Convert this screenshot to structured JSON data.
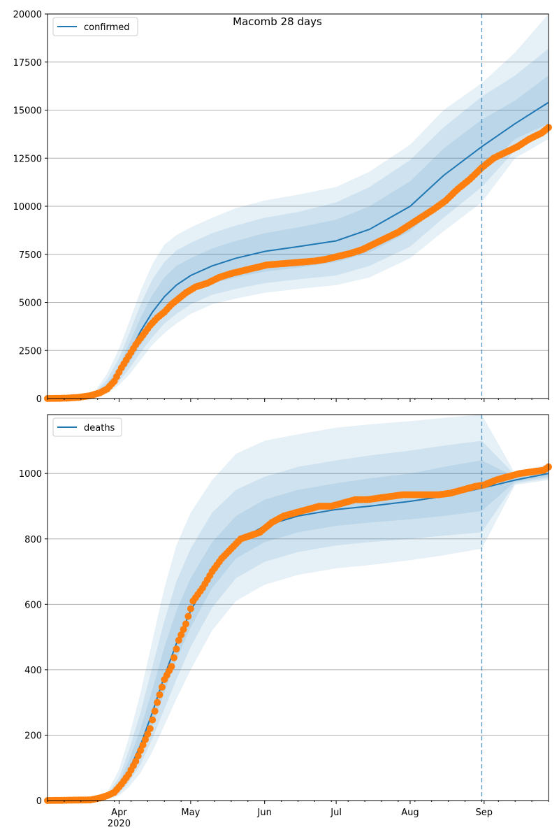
{
  "figure_title": "Macomb 28 days",
  "colors": {
    "model": "#1f77b4",
    "observed": "#ff7f0e",
    "band": "#1f77b4",
    "grid": "#b0b0b0"
  },
  "x_axis": {
    "type": "date",
    "range": [
      "2020-03-02",
      "2020-09-28"
    ],
    "ticks": [
      {
        "date": "2020-04-01",
        "label": "Apr",
        "year": "2020"
      },
      {
        "date": "2020-05-01",
        "label": "May"
      },
      {
        "date": "2020-06-01",
        "label": "Jun"
      },
      {
        "date": "2020-07-01",
        "label": "Jul"
      },
      {
        "date": "2020-08-01",
        "label": "Aug"
      },
      {
        "date": "2020-09-01",
        "label": "Sep"
      }
    ],
    "forecast_start": "2020-08-31"
  },
  "chart_data": [
    {
      "type": "line",
      "legend": "confirmed",
      "legend_position": "upper left",
      "grid": "horizontal",
      "ylim": [
        0,
        20000
      ],
      "yticks": [
        "0",
        "2500",
        "5000",
        "7500",
        "10000",
        "12500",
        "15000",
        "17500",
        "20000"
      ],
      "model": {
        "x": [
          "2020-03-02",
          "2020-03-15",
          "2020-03-22",
          "2020-03-27",
          "2020-04-01",
          "2020-04-05",
          "2020-04-10",
          "2020-04-15",
          "2020-04-20",
          "2020-04-25",
          "2020-05-01",
          "2020-05-10",
          "2020-05-20",
          "2020-06-01",
          "2020-06-15",
          "2020-07-01",
          "2020-07-15",
          "2020-08-01",
          "2020-08-15",
          "2020-08-31",
          "2020-09-14",
          "2020-09-28"
        ],
        "y": [
          0,
          50,
          200,
          600,
          1400,
          2300,
          3500,
          4500,
          5300,
          5900,
          6400,
          6900,
          7300,
          7650,
          7900,
          8200,
          8800,
          10000,
          11600,
          13100,
          14300,
          15400
        ],
        "band1_low": [
          0,
          40,
          150,
          450,
          1100,
          1800,
          2800,
          3700,
          4400,
          5000,
          5500,
          6000,
          6300,
          6600,
          6800,
          7100,
          7600,
          8700,
          10200,
          11800,
          13500,
          14300
        ],
        "band1_high": [
          0,
          60,
          250,
          800,
          1700,
          2800,
          4200,
          5400,
          6300,
          6900,
          7300,
          7800,
          8200,
          8600,
          8900,
          9300,
          10000,
          11300,
          13000,
          14500,
          15500,
          16800
        ],
        "band2_low": [
          0,
          30,
          100,
          350,
          900,
          1500,
          2400,
          3200,
          3900,
          4400,
          4900,
          5400,
          5700,
          6000,
          6200,
          6400,
          6900,
          7900,
          9400,
          11000,
          12900,
          13800
        ],
        "band2_high": [
          0,
          70,
          320,
          1000,
          2100,
          3300,
          4900,
          6200,
          7100,
          7700,
          8100,
          8600,
          9000,
          9400,
          9700,
          10200,
          11000,
          12400,
          14100,
          15700,
          16800,
          18200
        ],
        "band3_low": [
          0,
          20,
          80,
          250,
          700,
          1200,
          2000,
          2800,
          3400,
          3900,
          4400,
          4900,
          5200,
          5500,
          5700,
          5900,
          6300,
          7300,
          8700,
          10200,
          12500,
          13500
        ],
        "band3_high": [
          0,
          90,
          400,
          1300,
          2600,
          3900,
          5600,
          7000,
          8000,
          8500,
          8900,
          9400,
          9900,
          10300,
          10600,
          11000,
          11800,
          13200,
          15000,
          16400,
          18000,
          20000
        ]
      },
      "observed": {
        "x": [
          "2020-03-02",
          "2020-03-10",
          "2020-03-15",
          "2020-03-20",
          "2020-03-24",
          "2020-03-27",
          "2020-03-30",
          "2020-04-02",
          "2020-04-05",
          "2020-04-08",
          "2020-04-11",
          "2020-04-14",
          "2020-04-17",
          "2020-04-20",
          "2020-04-23",
          "2020-04-26",
          "2020-04-29",
          "2020-05-03",
          "2020-05-08",
          "2020-05-13",
          "2020-05-18",
          "2020-05-23",
          "2020-05-28",
          "2020-06-02",
          "2020-06-07",
          "2020-06-12",
          "2020-06-17",
          "2020-06-22",
          "2020-06-27",
          "2020-07-02",
          "2020-07-07",
          "2020-07-12",
          "2020-07-17",
          "2020-07-22",
          "2020-07-27",
          "2020-08-01",
          "2020-08-06",
          "2020-08-11",
          "2020-08-16",
          "2020-08-21",
          "2020-08-26",
          "2020-08-31",
          "2020-09-05",
          "2020-09-10",
          "2020-09-15",
          "2020-09-20",
          "2020-09-25",
          "2020-09-28"
        ],
        "y": [
          0,
          20,
          60,
          150,
          300,
          500,
          900,
          1600,
          2200,
          2800,
          3300,
          3800,
          4200,
          4500,
          4900,
          5200,
          5500,
          5800,
          6000,
          6300,
          6500,
          6650,
          6800,
          6950,
          7000,
          7050,
          7100,
          7150,
          7250,
          7400,
          7550,
          7750,
          8050,
          8350,
          8650,
          9050,
          9450,
          9850,
          10300,
          10900,
          11400,
          12000,
          12500,
          12800,
          13100,
          13500,
          13800,
          14100
        ]
      }
    },
    {
      "type": "line",
      "legend": "deaths",
      "legend_position": "upper left",
      "grid": "horizontal",
      "ylim": [
        0,
        1180
      ],
      "yticks": [
        "0",
        "200",
        "400",
        "600",
        "800",
        "1000"
      ],
      "model": {
        "x": [
          "2020-03-02",
          "2020-03-20",
          "2020-03-27",
          "2020-04-01",
          "2020-04-05",
          "2020-04-10",
          "2020-04-15",
          "2020-04-20",
          "2020-04-25",
          "2020-05-01",
          "2020-05-10",
          "2020-05-20",
          "2020-06-01",
          "2020-06-15",
          "2020-07-01",
          "2020-07-15",
          "2020-08-01",
          "2020-08-15",
          "2020-08-31",
          "2020-09-14",
          "2020-09-28"
        ],
        "y": [
          0,
          2,
          10,
          40,
          90,
          170,
          270,
          380,
          480,
          580,
          700,
          790,
          840,
          870,
          890,
          900,
          915,
          930,
          955,
          980,
          1000
        ],
        "band1_low": [
          0,
          1,
          7,
          30,
          70,
          140,
          230,
          330,
          430,
          530,
          650,
          740,
          790,
          820,
          840,
          850,
          860,
          870,
          885,
          975,
          990
        ],
        "band1_high": [
          0,
          3,
          14,
          55,
          120,
          220,
          340,
          470,
          580,
          680,
          790,
          870,
          920,
          950,
          970,
          985,
          1000,
          1020,
          1040,
          990,
          1010
        ],
        "band2_low": [
          0,
          1,
          5,
          22,
          55,
          110,
          190,
          280,
          370,
          470,
          590,
          680,
          730,
          760,
          780,
          790,
          800,
          810,
          820,
          970,
          985
        ],
        "band2_high": [
          0,
          4,
          18,
          70,
          150,
          270,
          410,
          550,
          670,
          770,
          880,
          950,
          990,
          1020,
          1040,
          1055,
          1070,
          1085,
          1100,
          995,
          1015
        ],
        "band3_low": [
          0,
          0,
          3,
          15,
          40,
          85,
          150,
          230,
          310,
          400,
          520,
          610,
          660,
          690,
          710,
          720,
          735,
          750,
          770,
          965,
          980
        ],
        "band3_high": [
          0,
          6,
          25,
          95,
          190,
          330,
          490,
          650,
          780,
          880,
          980,
          1060,
          1100,
          1120,
          1140,
          1150,
          1160,
          1170,
          1180,
          1000,
          1030
        ]
      },
      "observed": {
        "x": [
          "2020-03-02",
          "2020-03-20",
          "2020-03-24",
          "2020-03-27",
          "2020-03-30",
          "2020-04-02",
          "2020-04-05",
          "2020-04-08",
          "2020-04-11",
          "2020-04-14",
          "2020-04-17",
          "2020-04-20",
          "2020-04-23",
          "2020-04-26",
          "2020-04-29",
          "2020-05-02",
          "2020-05-06",
          "2020-05-10",
          "2020-05-14",
          "2020-05-18",
          "2020-05-22",
          "2020-05-26",
          "2020-05-30",
          "2020-06-04",
          "2020-06-09",
          "2020-06-14",
          "2020-06-19",
          "2020-06-24",
          "2020-06-29",
          "2020-07-04",
          "2020-07-09",
          "2020-07-14",
          "2020-07-19",
          "2020-07-24",
          "2020-07-29",
          "2020-08-03",
          "2020-08-08",
          "2020-08-13",
          "2020-08-18",
          "2020-08-23",
          "2020-08-28",
          "2020-09-01",
          "2020-09-06",
          "2020-09-11",
          "2020-09-16",
          "2020-09-21",
          "2020-09-26",
          "2020-09-28"
        ],
        "y": [
          0,
          2,
          8,
          15,
          25,
          50,
          80,
          120,
          170,
          220,
          300,
          370,
          410,
          490,
          540,
          610,
          650,
          700,
          740,
          770,
          800,
          810,
          820,
          850,
          870,
          880,
          890,
          900,
          900,
          910,
          920,
          920,
          925,
          930,
          935,
          935,
          935,
          935,
          940,
          950,
          960,
          965,
          980,
          990,
          1000,
          1005,
          1010,
          1020
        ]
      }
    }
  ]
}
